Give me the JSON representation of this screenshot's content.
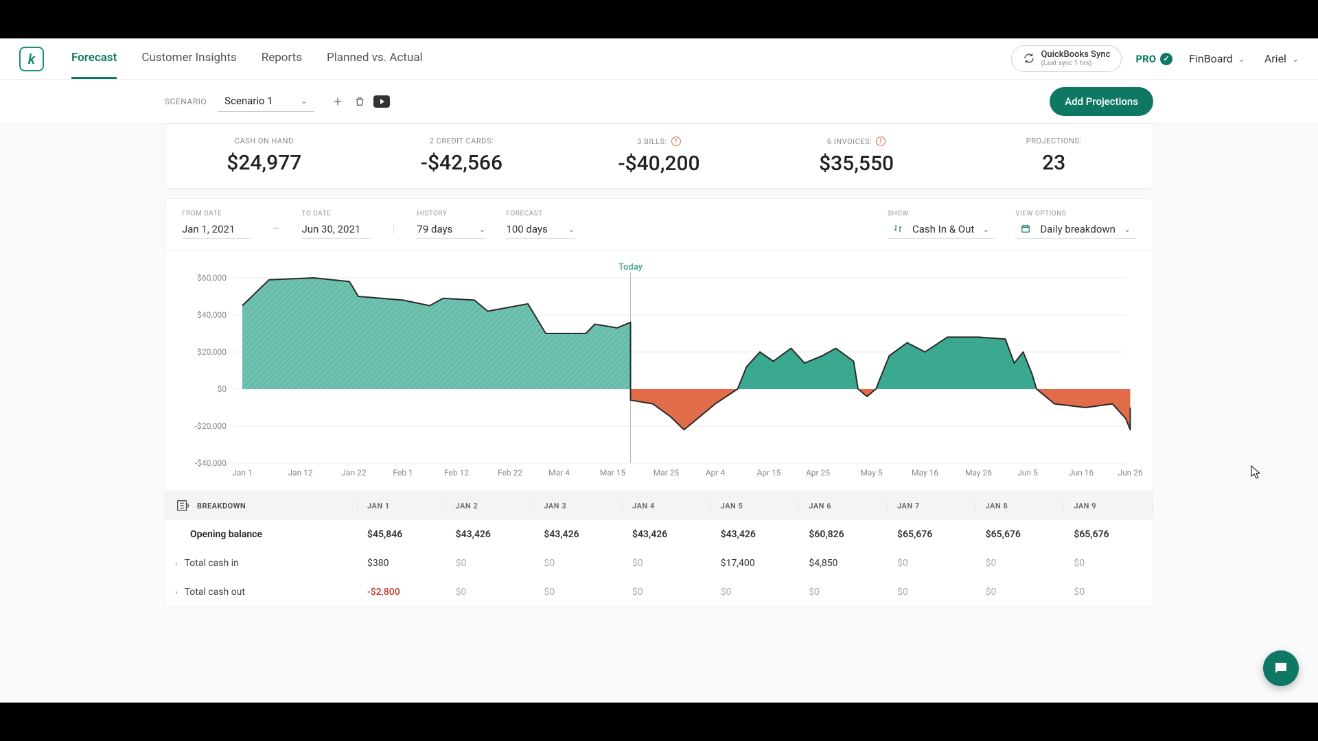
{
  "nav": {
    "tabs": [
      "Forecast",
      "Customer Insights",
      "Reports",
      "Planned vs. Actual"
    ],
    "active_index": 0,
    "qb_sync": {
      "title": "QuickBooks Sync",
      "sub": "(Last sync 1 hrs)"
    },
    "plan_badge": "PRO",
    "workspace": "FinBoard",
    "user": "Ariel"
  },
  "scenario": {
    "label": "SCENARIO",
    "value": "Scenario 1",
    "add_projections_label": "Add Projections"
  },
  "kpis": [
    {
      "label": "CASH ON HAND",
      "value": "$24,977",
      "alert": false
    },
    {
      "label": "2 CREDIT CARDS:",
      "value": "-$42,566",
      "alert": false
    },
    {
      "label": "3 BILLS:",
      "value": "-$40,200",
      "alert": true
    },
    {
      "label": "6 INVOICES:",
      "value": "$35,550",
      "alert": true
    },
    {
      "label": "PROJECTIONS:",
      "value": "23",
      "alert": false
    }
  ],
  "filters": {
    "from_label": "FROM DATE",
    "from_value": "Jan 1, 2021",
    "to_label": "TO DATE",
    "to_value": "Jun 30, 2021",
    "history_label": "HISTORY",
    "history_value": "79 days",
    "forecast_label": "FORECAST",
    "forecast_value": "100 days",
    "show_label": "SHOW",
    "show_value": "Cash In & Out",
    "view_label": "VIEW OPTIONS",
    "view_value": "Daily breakdown"
  },
  "chart": {
    "type": "area",
    "today_label": "Today",
    "today_x": 0.445,
    "ylim": [
      -40000,
      60000
    ],
    "yticks": [
      -40000,
      -20000,
      0,
      20000,
      40000,
      60000
    ],
    "ytick_labels": [
      "-$40,000",
      "-$20,000",
      "$0",
      "$20,000",
      "$40,000",
      "$60,000"
    ],
    "xticks": [
      0.01,
      0.075,
      0.135,
      0.19,
      0.25,
      0.31,
      0.365,
      0.425,
      0.485,
      0.54,
      0.6,
      0.655,
      0.715,
      0.775,
      0.835,
      0.89,
      0.95,
      1.005
    ],
    "xtick_labels": [
      "Jan 1",
      "Jan 12",
      "Jan 22",
      "Feb 1",
      "Feb 12",
      "Feb 22",
      "Mar 4",
      "Mar 15",
      "Mar 25",
      "Apr 4",
      "Apr 15",
      "Apr 25",
      "May 5",
      "May 16",
      "May 26",
      "Jun 5",
      "Jun 16",
      "Jun 26"
    ],
    "history": {
      "fill": "#6fc2b0",
      "stroke": "#2a2a2a",
      "stroke_width": 2,
      "hatch": true,
      "points": [
        [
          0.01,
          45000
        ],
        [
          0.04,
          59000
        ],
        [
          0.09,
          60000
        ],
        [
          0.13,
          58000
        ],
        [
          0.14,
          50000
        ],
        [
          0.19,
          48000
        ],
        [
          0.22,
          45000
        ],
        [
          0.235,
          49000
        ],
        [
          0.27,
          48000
        ],
        [
          0.285,
          42000
        ],
        [
          0.33,
          46000
        ],
        [
          0.35,
          30000
        ],
        [
          0.395,
          30000
        ],
        [
          0.405,
          35000
        ],
        [
          0.43,
          33000
        ],
        [
          0.445,
          36000
        ],
        [
          0.445,
          18000
        ]
      ]
    },
    "forecast_pos_segments": [
      {
        "fill": "#3aa98f",
        "stroke": "#2a2a2a",
        "stroke_width": 2,
        "points": [
          [
            0.565,
            0
          ],
          [
            0.575,
            12000
          ],
          [
            0.59,
            20000
          ],
          [
            0.605,
            15000
          ],
          [
            0.625,
            22000
          ],
          [
            0.64,
            14000
          ],
          [
            0.66,
            18000
          ],
          [
            0.675,
            22000
          ],
          [
            0.695,
            15000
          ],
          [
            0.7,
            0
          ]
        ]
      },
      {
        "fill": "#3aa98f",
        "stroke": "#2a2a2a",
        "stroke_width": 2,
        "points": [
          [
            0.72,
            0
          ],
          [
            0.735,
            18000
          ],
          [
            0.755,
            25000
          ],
          [
            0.775,
            20000
          ],
          [
            0.8,
            28000
          ],
          [
            0.835,
            28000
          ],
          [
            0.865,
            27000
          ],
          [
            0.875,
            14000
          ],
          [
            0.885,
            20000
          ],
          [
            0.895,
            8000
          ],
          [
            0.9,
            0
          ]
        ]
      }
    ],
    "forecast_neg_segments": [
      {
        "fill": "#e06c4a",
        "stroke": "#2a2a2a",
        "stroke_width": 2,
        "points": [
          [
            0.445,
            18000
          ],
          [
            0.445,
            -6000
          ],
          [
            0.47,
            -8000
          ],
          [
            0.49,
            -15000
          ],
          [
            0.505,
            -22000
          ],
          [
            0.52,
            -16000
          ],
          [
            0.54,
            -8000
          ],
          [
            0.565,
            0
          ]
        ]
      },
      {
        "fill": "#e06c4a",
        "stroke": "#2a2a2a",
        "stroke_width": 2,
        "points": [
          [
            0.7,
            0
          ],
          [
            0.71,
            -4000
          ],
          [
            0.72,
            0
          ]
        ]
      },
      {
        "fill": "#e06c4a",
        "stroke": "#2a2a2a",
        "stroke_width": 2,
        "points": [
          [
            0.9,
            0
          ],
          [
            0.92,
            -8000
          ],
          [
            0.955,
            -10000
          ],
          [
            0.985,
            -8000
          ],
          [
            1.0,
            -16000
          ],
          [
            1.005,
            -22000
          ],
          [
            1.005,
            -10000
          ]
        ]
      }
    ],
    "grid_color": "#eeeeee",
    "axis_color": "#888888",
    "background_color": "#ffffff"
  },
  "table": {
    "header_label": "BREAKDOWN",
    "columns": [
      "JAN 1",
      "JAN 2",
      "JAN 3",
      "JAN 4",
      "JAN 5",
      "JAN 6",
      "JAN 7",
      "JAN 8",
      "JAN 9"
    ],
    "rows": [
      {
        "label": "Opening balance",
        "expandable": false,
        "bold": true,
        "cells": [
          "$45,846",
          "$43,426",
          "$43,426",
          "$43,426",
          "$43,426",
          "$60,826",
          "$65,676",
          "$65,676",
          "$65,676"
        ]
      },
      {
        "label": "Total cash in",
        "expandable": true,
        "bold": false,
        "cells": [
          "$380",
          "$0",
          "$0",
          "$0",
          "$17,400",
          "$4,850",
          "$0",
          "$0",
          "$0"
        ]
      },
      {
        "label": "Total cash out",
        "expandable": true,
        "bold": false,
        "cells": [
          "-$2,800",
          "$0",
          "$0",
          "$0",
          "$0",
          "$0",
          "$0",
          "$0",
          "$0"
        ]
      }
    ]
  },
  "colors": {
    "brand": "#0f7864",
    "pos": "#3aa98f",
    "neg": "#e06c4a"
  }
}
